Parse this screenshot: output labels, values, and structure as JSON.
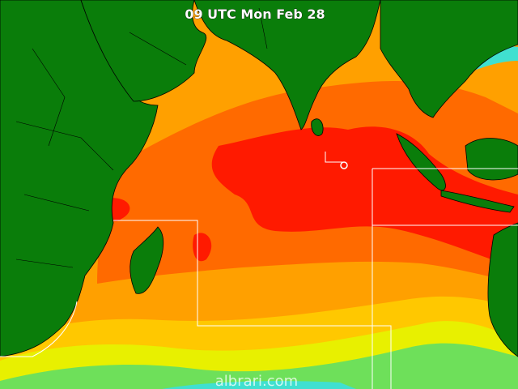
{
  "map": {
    "title": "09 UTC Mon Feb 28",
    "watermark": "albrari.com"
  }
}
